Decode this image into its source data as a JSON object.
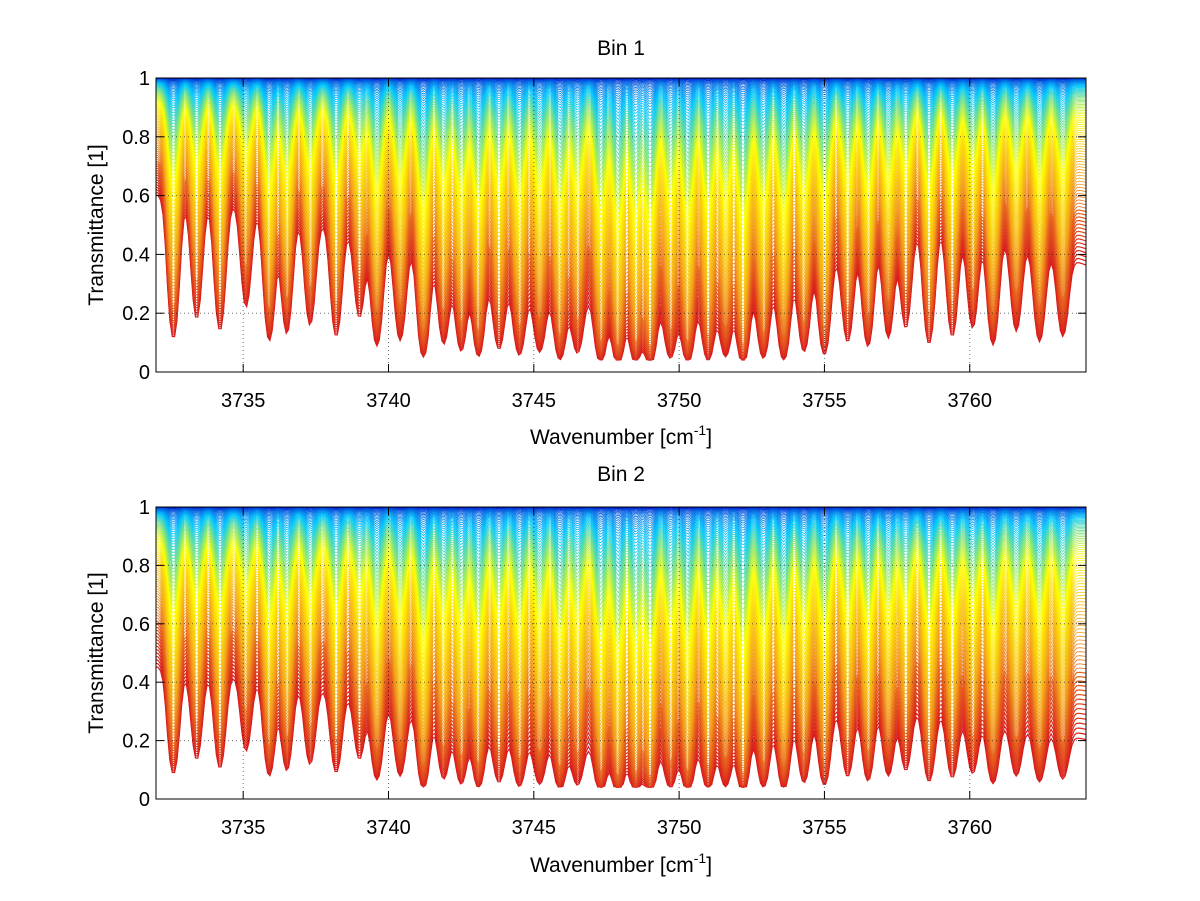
{
  "figure": {
    "colormap": [
      "#d7191c",
      "#f4a21e",
      "#ffff00",
      "#00c8ff",
      "#0000c8"
    ]
  },
  "chart_data": [
    {
      "type": "line",
      "title": "Bin 1",
      "xlabel": "Wavenumber [cm",
      "xlabel_sup": "-1",
      "xlabel_close": "]",
      "ylabel": "Transmittance [1]",
      "xlim": [
        3732,
        3764
      ],
      "ylim": [
        0,
        1
      ],
      "xticks": [
        3735,
        3740,
        3745,
        3750,
        3755,
        3760
      ],
      "xtick_labels": [
        "3735",
        "3740",
        "3745",
        "3750",
        "3755",
        "3760"
      ],
      "yticks": [
        0,
        0.2,
        0.4,
        0.6,
        0.8,
        1
      ],
      "ytick_labels": [
        "0",
        "0.2",
        "0.4",
        "0.6",
        "0.8",
        "1"
      ],
      "grid": true,
      "legend": "none",
      "series_count": 100,
      "line_centers": [
        3732.6,
        3733.4,
        3734.2,
        3735.1,
        3735.9,
        3736.5,
        3737.3,
        3738.2,
        3739.0,
        3739.6,
        3740.4,
        3741.2,
        3741.9,
        3742.5,
        3743.1,
        3743.8,
        3744.5,
        3745.2,
        3745.9,
        3746.5,
        3747.3,
        3747.9,
        3748.5,
        3749.0,
        3749.7,
        3750.3,
        3751.0,
        3751.6,
        3752.2,
        3752.9,
        3753.6,
        3754.3,
        3755.0,
        3755.8,
        3756.5,
        3757.2,
        3757.8,
        3758.6,
        3759.4,
        3760.1,
        3760.8,
        3761.6,
        3762.4,
        3763.2
      ],
      "line_strengths": [
        0.7,
        0.5,
        0.6,
        0.4,
        0.7,
        0.6,
        0.5,
        0.6,
        0.4,
        0.7,
        0.6,
        0.9,
        0.6,
        0.7,
        0.8,
        0.6,
        0.7,
        0.6,
        0.8,
        0.6,
        0.9,
        1.0,
        0.9,
        1.0,
        0.7,
        0.9,
        0.8,
        0.7,
        1.0,
        0.8,
        0.9,
        0.7,
        0.8,
        0.6,
        0.7,
        0.6,
        0.5,
        0.7,
        0.6,
        0.5,
        0.7,
        0.5,
        0.6,
        0.5
      ],
      "envelope": {
        "x": [
          3732,
          3735,
          3738,
          3741,
          3743,
          3745,
          3747,
          3749,
          3751,
          3753,
          3755,
          3757,
          3759,
          3761,
          3764
        ],
        "y": [
          0.6,
          0.57,
          0.5,
          0.42,
          0.34,
          0.27,
          0.25,
          0.23,
          0.24,
          0.3,
          0.38,
          0.47,
          0.5,
          0.47,
          0.36
        ]
      }
    },
    {
      "type": "line",
      "title": "Bin 2",
      "xlabel": "Wavenumber [cm",
      "xlabel_sup": "-1",
      "xlabel_close": "]",
      "ylabel": "Transmittance [1]",
      "xlim": [
        3732,
        3764
      ],
      "ylim": [
        0,
        1
      ],
      "xticks": [
        3735,
        3740,
        3745,
        3750,
        3755,
        3760
      ],
      "xtick_labels": [
        "3735",
        "3740",
        "3745",
        "3750",
        "3755",
        "3760"
      ],
      "yticks": [
        0,
        0.2,
        0.4,
        0.6,
        0.8,
        1
      ],
      "ytick_labels": [
        "0",
        "0.2",
        "0.4",
        "0.6",
        "0.8",
        "1"
      ],
      "grid": true,
      "legend": "none",
      "series_count": 100,
      "line_centers": [
        3732.6,
        3733.4,
        3734.2,
        3735.1,
        3735.9,
        3736.5,
        3737.3,
        3738.2,
        3739.0,
        3739.6,
        3740.4,
        3741.2,
        3741.9,
        3742.5,
        3743.1,
        3743.8,
        3744.5,
        3745.2,
        3745.9,
        3746.5,
        3747.3,
        3747.9,
        3748.5,
        3749.0,
        3749.7,
        3750.3,
        3751.0,
        3751.6,
        3752.2,
        3752.9,
        3753.6,
        3754.3,
        3755.0,
        3755.8,
        3756.5,
        3757.2,
        3757.8,
        3758.6,
        3759.4,
        3760.1,
        3760.8,
        3761.6,
        3762.4,
        3763.2
      ],
      "line_strengths": [
        0.7,
        0.5,
        0.6,
        0.4,
        0.7,
        0.6,
        0.5,
        0.6,
        0.4,
        0.7,
        0.6,
        0.9,
        0.6,
        0.7,
        0.8,
        0.6,
        0.7,
        0.6,
        0.8,
        0.6,
        0.9,
        1.0,
        0.9,
        1.0,
        0.7,
        0.9,
        0.8,
        0.7,
        1.0,
        0.8,
        0.9,
        0.7,
        0.8,
        0.6,
        0.7,
        0.6,
        0.5,
        0.7,
        0.6,
        0.5,
        0.7,
        0.5,
        0.6,
        0.5
      ],
      "envelope": {
        "x": [
          3732,
          3735,
          3738,
          3741,
          3743,
          3745,
          3747,
          3749,
          3751,
          3753,
          3755,
          3757,
          3759,
          3761,
          3764
        ],
        "y": [
          0.45,
          0.42,
          0.37,
          0.3,
          0.24,
          0.2,
          0.18,
          0.17,
          0.19,
          0.25,
          0.3,
          0.32,
          0.3,
          0.26,
          0.2
        ]
      }
    }
  ]
}
